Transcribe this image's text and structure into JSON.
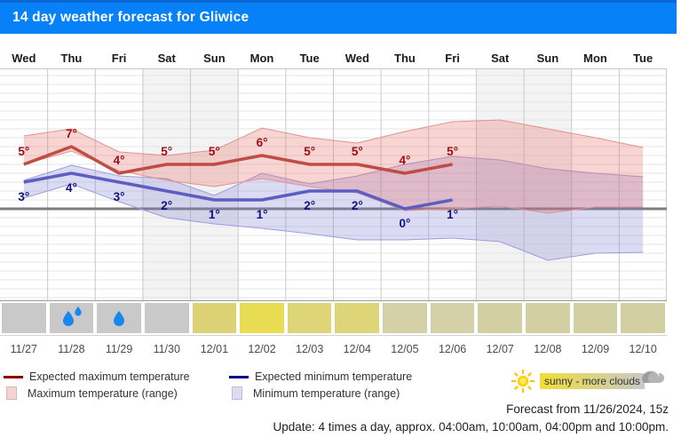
{
  "header": {
    "title": "14 day weather forecast for Gliwice"
  },
  "columns": {
    "days": [
      "Wed",
      "Thu",
      "Fri",
      "Sat",
      "Sun",
      "Mon",
      "Tue",
      "Wed",
      "Thu",
      "Fri",
      "Sat",
      "Sun",
      "Mon",
      "Tue"
    ],
    "dates": [
      "11/27",
      "11/28",
      "11/29",
      "11/30",
      "12/01",
      "12/02",
      "12/03",
      "12/04",
      "12/05",
      "12/06",
      "12/07",
      "12/08",
      "12/09",
      "12/10"
    ],
    "weekend_indices": [
      3,
      4,
      10,
      11
    ]
  },
  "chart_data": {
    "type": "line",
    "title": "14 day weather forecast for Gliwice",
    "x": [
      "11/27",
      "11/28",
      "11/29",
      "11/30",
      "12/01",
      "12/02",
      "12/03",
      "12/04",
      "12/05",
      "12/06",
      "12/07",
      "12/08",
      "12/09",
      "12/10"
    ],
    "unit": "°C",
    "ylim": [
      -10,
      15
    ],
    "zero_line": true,
    "grid": "1-degree horizontal lines, day column separators, weekend columns shaded",
    "series": [
      {
        "name": "Expected maximum temperature",
        "color": "#bf4d44",
        "values": [
          5,
          7,
          4,
          5,
          5,
          6,
          5,
          5,
          4,
          5,
          null,
          null,
          null,
          null
        ]
      },
      {
        "name": "Expected minimum temperature",
        "color": "#5d5dc2",
        "values": [
          3,
          4,
          3,
          2,
          1,
          1,
          2,
          2,
          0,
          1,
          null,
          null,
          null,
          null
        ]
      },
      {
        "name": "Maximum temperature range high",
        "color": "#e09390",
        "values": [
          8.2,
          9,
          6.4,
          6,
          6.6,
          9.1,
          8,
          7.4,
          8.7,
          9.8,
          10,
          9,
          8,
          6.9
        ]
      },
      {
        "name": "Maximum temperature range low",
        "color": "#e09390",
        "values": [
          5,
          6.5,
          4.3,
          3.2,
          2.5,
          3.4,
          2.5,
          1.8,
          -0.2,
          0,
          0.3,
          -0.5,
          0.2,
          0.2
        ]
      },
      {
        "name": "Minimum temperature range high",
        "color": "#9c9cdc",
        "values": [
          3.2,
          4.9,
          3.7,
          3.4,
          1.5,
          4,
          2.8,
          3.7,
          5,
          5.9,
          5.5,
          4.5,
          4,
          3.6
        ]
      },
      {
        "name": "Minimum temperature range low",
        "color": "#9c9cdc",
        "values": [
          1.2,
          2.8,
          0.8,
          -1,
          -1.7,
          -2.2,
          -2.8,
          -3.5,
          -3.5,
          -3.3,
          -3.7,
          -5.8,
          -5,
          -4.9
        ]
      }
    ],
    "colors": {
      "max_band_fill": "rgba(231,112,105,0.30)",
      "min_band_fill": "rgba(125,125,214,0.28)",
      "max_label": "#a00d12",
      "min_label": "#10107e",
      "zero_line": "#7d7d7d",
      "gridline": "#e6e6e6",
      "column_line": "#c9c9c9",
      "weekend_shade": "#f3f3f3"
    }
  },
  "weather_icons": [
    {
      "date": "11/27",
      "type": "cloudy-gray",
      "color": "#c9c9c9",
      "drops": 0
    },
    {
      "date": "11/28",
      "type": "rain-two-drops",
      "color": "#c9c9c9",
      "drops": 2
    },
    {
      "date": "11/29",
      "type": "rain-one-drop",
      "color": "#c9c9c9",
      "drops": 1
    },
    {
      "date": "11/30",
      "type": "cloudy-gray",
      "color": "#c9c9c9",
      "drops": 0
    },
    {
      "date": "12/01",
      "type": "sun-and-clouds",
      "color": "#ddd175",
      "drops": 0
    },
    {
      "date": "12/02",
      "type": "mostly-sunny",
      "color": "#e8dc52",
      "drops": 0
    },
    {
      "date": "12/03",
      "type": "sun-and-clouds",
      "color": "#ded578",
      "drops": 0
    },
    {
      "date": "12/04",
      "type": "sun-and-clouds",
      "color": "#ded578",
      "drops": 0
    },
    {
      "date": "12/05",
      "type": "more-clouds",
      "color": "#d4d0a8",
      "drops": 0
    },
    {
      "date": "12/06",
      "type": "more-clouds",
      "color": "#d4d0a8",
      "drops": 0
    },
    {
      "date": "12/07",
      "type": "more-clouds",
      "color": "#d2cfa3",
      "drops": 0
    },
    {
      "date": "12/08",
      "type": "more-clouds",
      "color": "#d2cfa3",
      "drops": 0
    },
    {
      "date": "12/09",
      "type": "more-clouds",
      "color": "#d2cfa3",
      "drops": 0
    },
    {
      "date": "12/10",
      "type": "more-clouds",
      "color": "#d2cfa3",
      "drops": 0
    }
  ],
  "legend": {
    "max_line": "Expected maximum temperature",
    "min_line": "Expected minimum temperature",
    "max_range": "Maximum temperature (range)",
    "min_range": "Minimum temperature (range)",
    "max_line_color": "#8b0000",
    "min_line_color": "#00008b",
    "max_range_fill": "#f5d3d3",
    "min_range_fill": "#dcdcf2"
  },
  "sun_clouds": {
    "label": "sunny - more clouds",
    "left_color": "#f0de3a",
    "right_color": "#c8c8c8"
  },
  "footer": {
    "forecast_from": "Forecast from 11/26/2024, 15z",
    "update": "Update: 4 times a day, approx. 04:00am, 10:00am, 04:00pm and 10:00pm."
  }
}
